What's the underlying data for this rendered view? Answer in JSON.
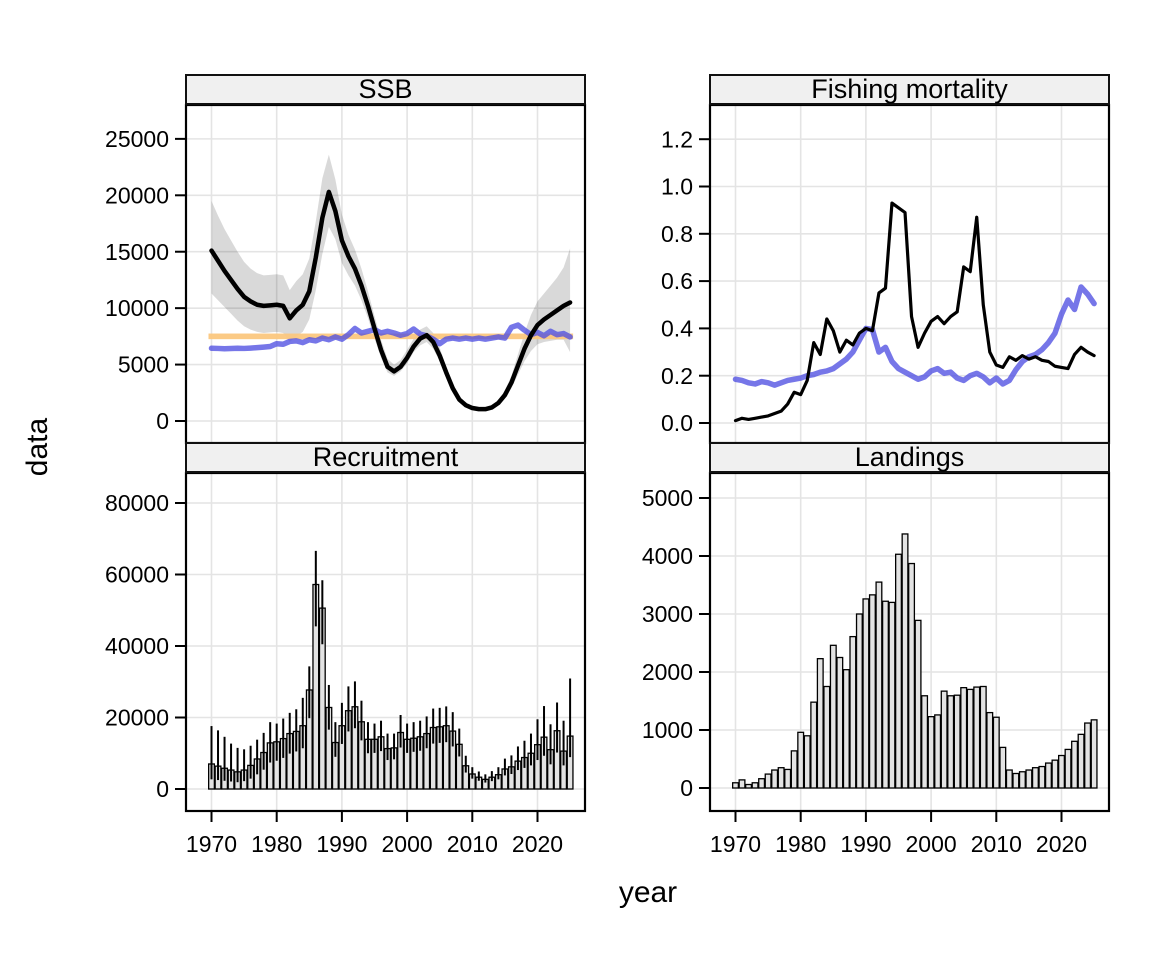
{
  "figure": {
    "xlabel": "year",
    "ylabel": "data",
    "background": "#ffffff"
  },
  "colors": {
    "black_line": "#000000",
    "blue_line": "rgba(80,80,225,0.78)",
    "orange_band": "rgba(251,199,126,0.95)",
    "confidence_band": "rgba(0,0,0,0.15)",
    "grid": "#e4e4e4",
    "bar_fill": "#e3e3e3",
    "strip_bg": "#f0f0f0",
    "border": "#000000"
  },
  "x_axis": {
    "range": [
      1970,
      2025
    ],
    "ticks": [
      1970,
      1980,
      1990,
      2000,
      2010,
      2020
    ],
    "labels": [
      "1970",
      "1980",
      "1990",
      "2000",
      "2010",
      "2020"
    ]
  },
  "chart_data": [
    {
      "title": "SSB",
      "type": "line",
      "ylim": [
        0,
        28000
      ],
      "yticks": {
        "values": [
          0,
          5000,
          10000,
          15000,
          20000,
          25000
        ],
        "labels": [
          "0",
          "5000",
          "10000",
          "15000",
          "20000",
          "25000"
        ]
      },
      "bands": [
        {
          "name": "confidence-band",
          "kind": "series",
          "lo": [
            11300,
            10700,
            10100,
            9500,
            8900,
            8400,
            8100,
            7900,
            7800,
            7850,
            7900,
            7800,
            7000,
            7500,
            7900,
            9000,
            11600,
            14800,
            17200,
            16100,
            14000,
            12900,
            12000,
            10700,
            9100,
            7300,
            5600,
            4300,
            4000,
            4400,
            5100,
            6100,
            6700,
            7000,
            6400,
            5300,
            3900,
            2600,
            1700,
            1250,
            1030,
            950,
            950,
            1070,
            1400,
            2000,
            2900,
            4100,
            5300,
            6200,
            6800,
            7000,
            7100,
            7200,
            7200,
            6100
          ],
          "hi": [
            19500,
            18200,
            17000,
            16000,
            15000,
            14100,
            13500,
            13100,
            12900,
            12950,
            13000,
            12900,
            11600,
            12400,
            13000,
            14400,
            17700,
            21500,
            23600,
            21400,
            18300,
            16500,
            15200,
            13500,
            11500,
            9300,
            7200,
            5500,
            5000,
            5400,
            6300,
            7300,
            8100,
            8400,
            7800,
            6500,
            4800,
            3300,
            2200,
            1600,
            1300,
            1180,
            1180,
            1350,
            1850,
            2700,
            4000,
            5900,
            7800,
            9400,
            10600,
            11300,
            12000,
            12700,
            13600,
            15300
          ]
        },
        {
          "name": "orange-reference-band",
          "kind": "flat",
          "lo": 7250,
          "hi": 7750
        }
      ],
      "series": [
        {
          "name": "blue-reference-line",
          "role": "blue",
          "values": [
            6450,
            6430,
            6400,
            6420,
            6450,
            6430,
            6460,
            6500,
            6550,
            6600,
            6850,
            6800,
            7050,
            7100,
            6950,
            7200,
            7100,
            7350,
            7200,
            7450,
            7250,
            7650,
            8200,
            7800,
            7950,
            8100,
            7800,
            7950,
            7800,
            7600,
            7750,
            8150,
            7700,
            7550,
            7250,
            6850,
            7250,
            7350,
            7250,
            7350,
            7250,
            7350,
            7250,
            7350,
            7450,
            7350,
            8300,
            8500,
            8050,
            7650,
            7850,
            7550,
            7950,
            7650,
            7750,
            7450
          ]
        },
        {
          "name": "ssb-estimate",
          "role": "black-thick",
          "values": [
            15100,
            14200,
            13300,
            12500,
            11700,
            11000,
            10600,
            10300,
            10200,
            10250,
            10300,
            10200,
            9100,
            9800,
            10300,
            11500,
            14500,
            18000,
            20300,
            18600,
            16000,
            14600,
            13500,
            12000,
            10200,
            8200,
            6300,
            4800,
            4400,
            4800,
            5600,
            6600,
            7300,
            7600,
            7000,
            5800,
            4300,
            2900,
            1900,
            1400,
            1150,
            1050,
            1050,
            1200,
            1600,
            2300,
            3400,
            4900,
            6400,
            7600,
            8500,
            9000,
            9400,
            9800,
            10200,
            10500
          ]
        }
      ]
    },
    {
      "title": "Fishing mortality",
      "type": "line",
      "ylim": [
        0,
        1.3
      ],
      "yticks": {
        "values": [
          0,
          0.2,
          0.4,
          0.6,
          0.8,
          1.0,
          1.2
        ],
        "labels": [
          "0.0",
          "0.2",
          "0.4",
          "0.6",
          "0.8",
          "1.0",
          "1.2"
        ]
      },
      "bands": [],
      "series": [
        {
          "name": "f-blue-reference-line",
          "role": "blue",
          "values": [
            0.185,
            0.18,
            0.17,
            0.165,
            0.175,
            0.17,
            0.16,
            0.17,
            0.18,
            0.185,
            0.19,
            0.2,
            0.205,
            0.215,
            0.22,
            0.23,
            0.25,
            0.27,
            0.3,
            0.35,
            0.4,
            0.395,
            0.3,
            0.32,
            0.26,
            0.23,
            0.215,
            0.2,
            0.185,
            0.195,
            0.22,
            0.23,
            0.21,
            0.215,
            0.19,
            0.18,
            0.2,
            0.21,
            0.195,
            0.17,
            0.19,
            0.165,
            0.18,
            0.225,
            0.26,
            0.28,
            0.29,
            0.31,
            0.34,
            0.38,
            0.46,
            0.52,
            0.48,
            0.575,
            0.545,
            0.505
          ]
        },
        {
          "name": "f-estimate",
          "role": "black-thin",
          "values": [
            0.01,
            0.02,
            0.015,
            0.02,
            0.025,
            0.03,
            0.04,
            0.05,
            0.08,
            0.13,
            0.12,
            0.18,
            0.34,
            0.29,
            0.44,
            0.39,
            0.3,
            0.35,
            0.33,
            0.38,
            0.4,
            0.39,
            0.55,
            0.57,
            0.93,
            0.91,
            0.89,
            0.45,
            0.32,
            0.38,
            0.43,
            0.45,
            0.42,
            0.45,
            0.47,
            0.66,
            0.64,
            0.87,
            0.5,
            0.3,
            0.245,
            0.235,
            0.28,
            0.265,
            0.285,
            0.27,
            0.28,
            0.265,
            0.26,
            0.24,
            0.235,
            0.23,
            0.29,
            0.32,
            0.3,
            0.285
          ]
        }
      ]
    },
    {
      "title": "Recruitment",
      "type": "bar",
      "ylim": [
        0,
        88000
      ],
      "yticks": {
        "values": [
          0,
          20000,
          40000,
          60000,
          80000
        ],
        "labels": [
          "0",
          "20000",
          "40000",
          "60000",
          "80000"
        ]
      },
      "values": [
        7000,
        6400,
        5800,
        5300,
        4800,
        5300,
        6600,
        8400,
        10200,
        12900,
        13200,
        14100,
        15500,
        16100,
        17700,
        27700,
        57200,
        50600,
        22800,
        13000,
        17700,
        21900,
        23000,
        18800,
        13900,
        13900,
        14600,
        11300,
        11500,
        15800,
        13900,
        14200,
        14600,
        15500,
        17200,
        17400,
        17700,
        16200,
        12500,
        6500,
        4200,
        3300,
        2700,
        3300,
        4000,
        5600,
        6200,
        7800,
        8800,
        10000,
        12400,
        14500,
        11000,
        16300,
        10600,
        14800
      ],
      "err_lo": [
        2700,
        2500,
        2300,
        2100,
        1900,
        2200,
        2900,
        4100,
        5400,
        7400,
        7900,
        8700,
        9900,
        10500,
        11400,
        19800,
        45500,
        40500,
        16600,
        9000,
        12600,
        16100,
        17000,
        13600,
        10000,
        10100,
        10600,
        8100,
        8300,
        11600,
        10100,
        10400,
        10700,
        11400,
        12700,
        12900,
        13100,
        11900,
        9100,
        4600,
        2900,
        2300,
        1800,
        2200,
        2700,
        3800,
        4200,
        5300,
        5900,
        6600,
        8100,
        9300,
        6900,
        10200,
        6600,
        8900
      ],
      "err_hi": [
        17600,
        16400,
        14600,
        12700,
        11500,
        11100,
        12100,
        13800,
        15700,
        18700,
        18300,
        19700,
        21300,
        22300,
        25500,
        34300,
        66600,
        58400,
        29100,
        18700,
        24100,
        28700,
        30100,
        24700,
        18700,
        18300,
        19100,
        15500,
        15500,
        20700,
        18300,
        18700,
        19100,
        20300,
        22500,
        22700,
        23100,
        21500,
        16900,
        9300,
        6100,
        4900,
        4100,
        5000,
        6100,
        8500,
        9400,
        11900,
        13500,
        15500,
        19500,
        23200,
        18100,
        24200,
        19100,
        30900
      ]
    },
    {
      "title": "Landings",
      "type": "bar",
      "ylim": [
        0,
        5400
      ],
      "yticks": {
        "values": [
          0,
          1000,
          2000,
          3000,
          4000,
          5000
        ],
        "labels": [
          "0",
          "1000",
          "2000",
          "3000",
          "4000",
          "5000"
        ]
      },
      "values": [
        90,
        140,
        60,
        90,
        160,
        240,
        310,
        350,
        320,
        640,
        960,
        900,
        1480,
        2230,
        1750,
        2460,
        2250,
        2040,
        2610,
        3000,
        3260,
        3330,
        3550,
        3220,
        3200,
        4030,
        4380,
        3870,
        2890,
        1590,
        1230,
        1260,
        1670,
        1590,
        1600,
        1730,
        1700,
        1740,
        1750,
        1300,
        1220,
        700,
        310,
        250,
        280,
        310,
        350,
        370,
        430,
        480,
        560,
        665,
        805,
        925,
        1120,
        1175
      ]
    }
  ]
}
